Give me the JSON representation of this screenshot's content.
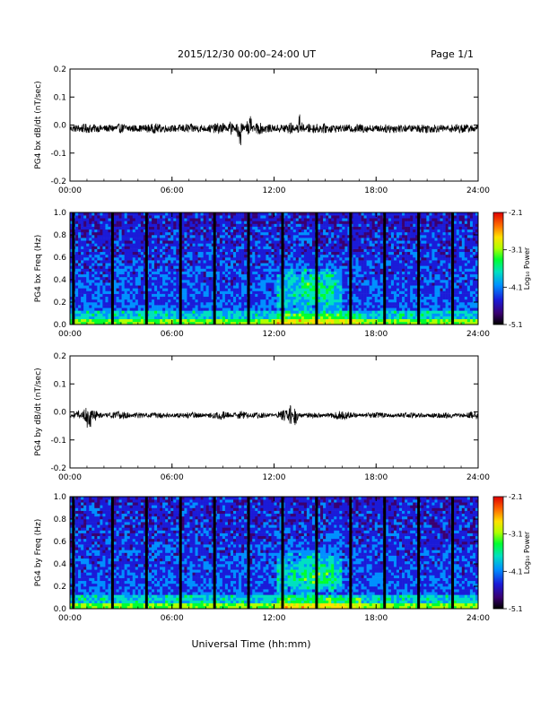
{
  "header": {
    "title": "2015/12/30  00:00–24:00 UT",
    "page": "Page 1/1"
  },
  "footer": {
    "xlabel": "Universal Time (hh:mm)"
  },
  "x_ticks": [
    "00:00",
    "06:00",
    "12:00",
    "18:00",
    "24:00"
  ],
  "y_ticks_wave": [
    "0.2",
    "0.1",
    "0.0",
    "-0.1",
    "-0.2"
  ],
  "y_ticks_freq": [
    "1.0",
    "0.8",
    "0.6",
    "0.4",
    "0.2",
    "0.0"
  ],
  "colorbar": {
    "label": "Log₁₀ Power",
    "ticks": [
      "-2.1",
      "-3.1",
      "-4.1",
      "-5.1"
    ]
  },
  "colors": {
    "trace": "#000000",
    "colormap": [
      "#000000",
      "#3a0070",
      "#1b1bd8",
      "#0090ff",
      "#00e0c0",
      "#00ff30",
      "#b0ff00",
      "#ffe000",
      "#ff7000",
      "#e00000"
    ]
  },
  "chart_data": [
    {
      "type": "line",
      "title": "",
      "ylabel": "PG4 bx dB/dt (nT/sec)",
      "xlabel": "",
      "xlim": [
        0,
        24
      ],
      "ylim": [
        -0.2,
        0.2
      ],
      "series": [
        {
          "x": [
            0,
            1,
            2,
            3,
            4,
            5,
            6,
            7,
            8,
            9,
            9.5,
            10,
            10.5,
            11,
            12,
            13,
            13.5,
            14,
            15,
            16,
            17,
            18,
            19,
            20,
            21,
            22,
            23,
            24
          ],
          "y": [
            -0.01,
            -0.02,
            -0.01,
            -0.02,
            -0.01,
            -0.02,
            -0.01,
            -0.02,
            -0.01,
            -0.03,
            0.04,
            -0.07,
            0.06,
            -0.03,
            -0.01,
            -0.03,
            0.05,
            -0.02,
            -0.02,
            -0.01,
            -0.02,
            -0.01,
            -0.02,
            -0.01,
            -0.02,
            -0.01,
            -0.02,
            -0.01
          ]
        }
      ]
    },
    {
      "type": "heatmap",
      "title": "",
      "ylabel": "PG4 bx Freq (Hz)",
      "xlabel": "",
      "xlim": [
        0,
        24
      ],
      "ylim": [
        0,
        1.0
      ],
      "colorbar_label": "Log₁₀ Power",
      "clim": [
        -5.1,
        -2.1
      ],
      "data_gaps_hours": [
        0.2,
        2.5,
        4.5,
        6.5,
        8.5,
        10.5,
        12.5,
        14.5,
        16.5,
        18.5,
        20.5,
        22.5
      ]
    },
    {
      "type": "line",
      "title": "",
      "ylabel": "PG4 by dB/dt (nT/sec)",
      "xlabel": "",
      "xlim": [
        0,
        24
      ],
      "ylim": [
        -0.2,
        0.2
      ],
      "series": [
        {
          "x": [
            0,
            0.5,
            1,
            2,
            3,
            4,
            5,
            6,
            7,
            8,
            9,
            10,
            11,
            12,
            12.5,
            13,
            13.2,
            13.5,
            14,
            15,
            16,
            17,
            18,
            19,
            20,
            21,
            22,
            23,
            24
          ],
          "y": [
            0.0,
            0.02,
            -0.05,
            0.0,
            -0.02,
            0.01,
            -0.01,
            0.0,
            -0.01,
            0.0,
            -0.02,
            0.02,
            -0.01,
            0.0,
            0.02,
            0.06,
            -0.08,
            0.01,
            -0.01,
            0.0,
            -0.02,
            0.0,
            -0.01,
            0.0,
            -0.01,
            0.0,
            -0.01,
            0.0,
            -0.02
          ]
        }
      ]
    },
    {
      "type": "heatmap",
      "title": "",
      "ylabel": "PG4 by Freq (Hz)",
      "xlabel": "",
      "xlim": [
        0,
        24
      ],
      "ylim": [
        0,
        1.0
      ],
      "colorbar_label": "Log₁₀ Power",
      "clim": [
        -5.1,
        -2.1
      ],
      "data_gaps_hours": [
        0.2,
        2.5,
        4.5,
        6.5,
        8.5,
        10.5,
        12.5,
        14.5,
        16.5,
        18.5,
        20.5,
        22.5
      ]
    }
  ]
}
